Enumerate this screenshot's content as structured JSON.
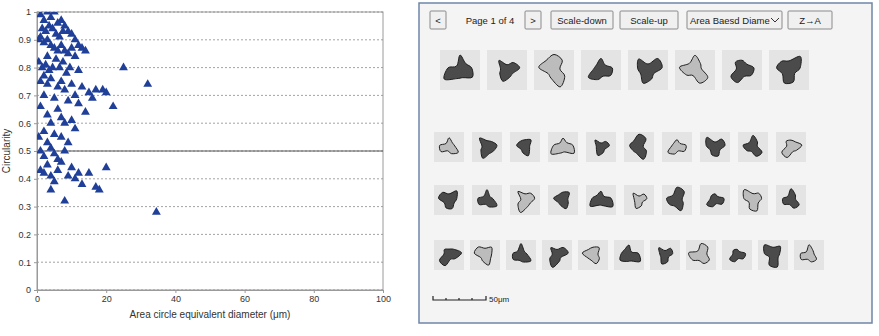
{
  "chart_data": {
    "type": "scatter",
    "x_label": "Area circle equivalent diameter (μm)",
    "y_label": "Circularity",
    "x": [
      1,
      2,
      3,
      4,
      5,
      6,
      7,
      8,
      9,
      10,
      11,
      2.5,
      3.5,
      4.5,
      5.5,
      6.5,
      7.5,
      12,
      13,
      1.5,
      0.5,
      1,
      2,
      3,
      4,
      5,
      6,
      7,
      8,
      9,
      10,
      11,
      14,
      0.5,
      1.5,
      2.5,
      3.5,
      4.5,
      5.5,
      6.5,
      7.5,
      8.5,
      9.5,
      12,
      3,
      2,
      1,
      3,
      4,
      6,
      7,
      8,
      10,
      11,
      13,
      15,
      16,
      17,
      19,
      20,
      22,
      25,
      32,
      2,
      5,
      9,
      12,
      14,
      1,
      3,
      6,
      7,
      8,
      4,
      10,
      2,
      5,
      11,
      0.5,
      3,
      7,
      9,
      1,
      2,
      4,
      5,
      6,
      8,
      3,
      7,
      10,
      1,
      2,
      4,
      6,
      9,
      5,
      12,
      15,
      20,
      13,
      17,
      18,
      4,
      8,
      34.5,
      11
    ],
    "values": [
      0.99,
      0.97,
      1.0,
      0.98,
      1.0,
      0.96,
      0.97,
      0.95,
      0.93,
      0.92,
      0.9,
      0.93,
      0.95,
      0.94,
      0.92,
      0.91,
      0.93,
      0.88,
      0.87,
      0.94,
      0.9,
      0.91,
      0.89,
      0.9,
      0.88,
      0.87,
      0.86,
      0.88,
      0.86,
      0.85,
      0.87,
      0.84,
      0.86,
      0.82,
      0.8,
      0.81,
      0.79,
      0.8,
      0.83,
      0.8,
      0.82,
      0.78,
      0.8,
      0.79,
      0.84,
      0.77,
      0.75,
      0.74,
      0.76,
      0.73,
      0.75,
      0.72,
      0.74,
      0.7,
      0.73,
      0.71,
      0.69,
      0.72,
      0.72,
      0.71,
      0.66,
      0.8,
      0.74,
      0.7,
      0.69,
      0.68,
      0.67,
      0.64,
      0.66,
      0.63,
      0.65,
      0.62,
      0.6,
      0.6,
      0.61,
      0.57,
      0.56,
      0.58,
      0.55,
      0.53,
      0.55,
      0.53,
      0.5,
      0.48,
      0.51,
      0.49,
      0.47,
      0.5,
      0.45,
      0.46,
      0.44,
      0.43,
      0.42,
      0.41,
      0.43,
      0.41,
      0.39,
      0.42,
      0.42,
      0.44,
      0.38,
      0.37,
      0.36,
      0.36,
      0.32,
      0.28,
      0.4
    ],
    "color": "#1f3f99",
    "marker": "triangle",
    "xlim": [
      0,
      100
    ],
    "xticks": [
      0,
      20,
      40,
      60,
      80,
      100
    ],
    "ylim": [
      0,
      1
    ],
    "yticks": [
      0,
      0.1,
      0.2,
      0.3,
      0.4,
      0.5,
      0.6,
      0.7,
      0.8,
      0.9,
      1
    ],
    "threshold": 0.5,
    "grid": true
  },
  "panel": {
    "prev": "<",
    "page_label": "Page 1 of 4",
    "next": ">",
    "buttons": [
      "Scale-down",
      "Scale-up"
    ],
    "sort_field": "Area Baesd Diame",
    "sort_order": "Z→A",
    "scale_bar": "50μm"
  }
}
